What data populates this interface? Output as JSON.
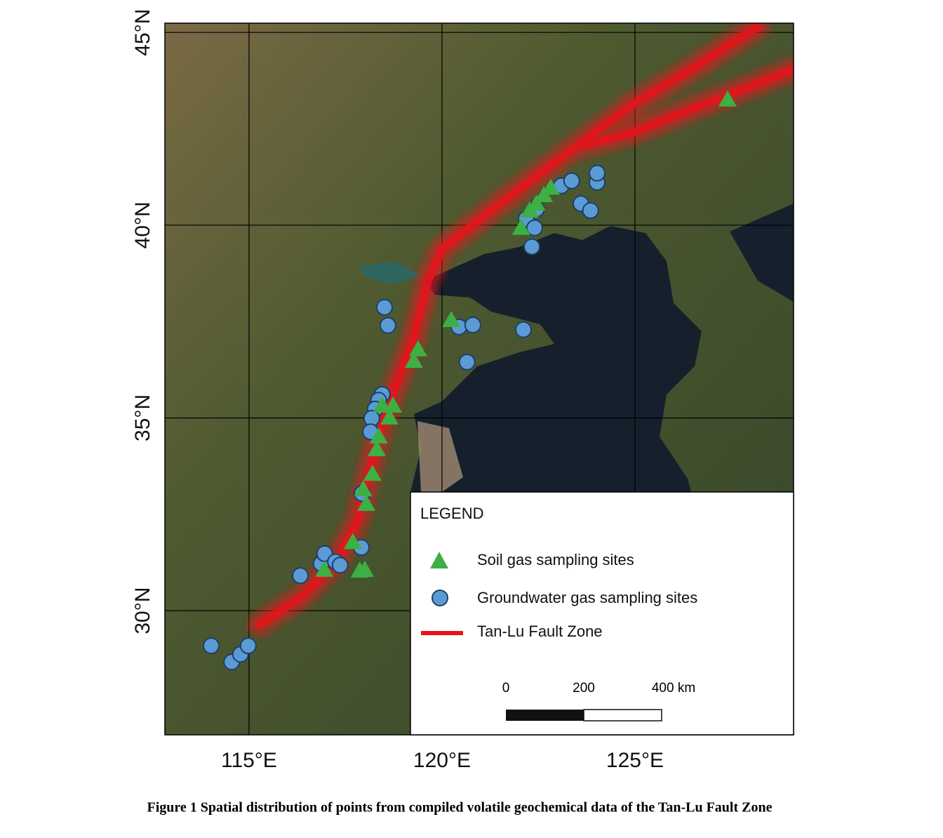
{
  "chart_data": {
    "type": "scatter",
    "caption": "Figure 1 Spatial distribution of points from compiled volatile geochemical data of the Tan-Lu Fault Zone",
    "xlim": [
      112.82,
      129.11
    ],
    "ylim": [
      26.78,
      45.24
    ],
    "xticks": [
      {
        "value": 115,
        "label": "115°E"
      },
      {
        "value": 120,
        "label": "120°E"
      },
      {
        "value": 125,
        "label": "125°E"
      }
    ],
    "yticks": [
      {
        "value": 30,
        "label": "30°N"
      },
      {
        "value": 35,
        "label": "35°N"
      },
      {
        "value": 40,
        "label": "40°N"
      },
      {
        "value": 45,
        "label": "45°N"
      }
    ],
    "grid": true,
    "legend_title": "LEGEND",
    "scale_bar": {
      "labels": [
        "0",
        "200",
        "400 km"
      ]
    },
    "series": [
      {
        "name": "Soil gas sampling sites",
        "color": "#3cb043",
        "marker": "triangle",
        "x": [
          127.4,
          122.05,
          122.27,
          122.45,
          122.64,
          122.82,
          120.24,
          119.38,
          119.27,
          118.45,
          118.73,
          118.64,
          118.36,
          118.31,
          118.2,
          117.96,
          118.04,
          117.69,
          116.95,
          117.87,
          118.0
        ],
        "y": [
          43.26,
          39.93,
          40.38,
          40.56,
          40.78,
          40.97,
          37.54,
          36.78,
          36.48,
          35.32,
          35.32,
          35.01,
          34.52,
          34.19,
          33.55,
          33.15,
          32.77,
          31.78,
          31.06,
          31.04,
          31.06
        ]
      },
      {
        "name": "Groundwater gas sampling sites",
        "color": "#5b9bd5",
        "marker": "circle",
        "x": [
          114.02,
          114.55,
          114.78,
          114.98,
          116.33,
          116.87,
          116.96,
          117.24,
          117.36,
          117.91,
          117.93,
          118.51,
          118.6,
          118.45,
          118.36,
          118.27,
          118.18,
          118.15,
          120.44,
          120.8,
          120.65,
          122.11,
          122.18,
          122.4,
          122.33,
          122.45,
          123.09,
          123.36,
          123.6,
          123.85,
          124.02,
          124.02
        ],
        "y": [
          29.09,
          28.67,
          28.87,
          29.09,
          30.91,
          31.22,
          31.48,
          31.27,
          31.18,
          31.64,
          33.04,
          37.87,
          37.4,
          35.61,
          35.46,
          35.23,
          34.99,
          34.64,
          37.36,
          37.41,
          36.45,
          37.29,
          40.16,
          39.93,
          39.44,
          40.42,
          41.02,
          41.15,
          40.56,
          40.38,
          41.11,
          41.35
        ]
      },
      {
        "name": "Tan-Lu Fault Zone",
        "color": "#e8141c",
        "marker": "line",
        "x": [
          115.27,
          116.36,
          117.27,
          117.82,
          118.36,
          118.73,
          119.27,
          119.64,
          120.0,
          121.27,
          122.73,
          123.45,
          124.91,
          126.73,
          128.18,
          null,
          123.45,
          124.91,
          126.73,
          129.1
        ],
        "y": [
          29.64,
          30.36,
          31.27,
          32.37,
          34.55,
          35.65,
          37.1,
          38.56,
          39.38,
          40.38,
          41.48,
          42.02,
          43.11,
          44.21,
          45.15,
          null,
          42.02,
          42.39,
          43.11,
          44.03
        ]
      }
    ]
  }
}
